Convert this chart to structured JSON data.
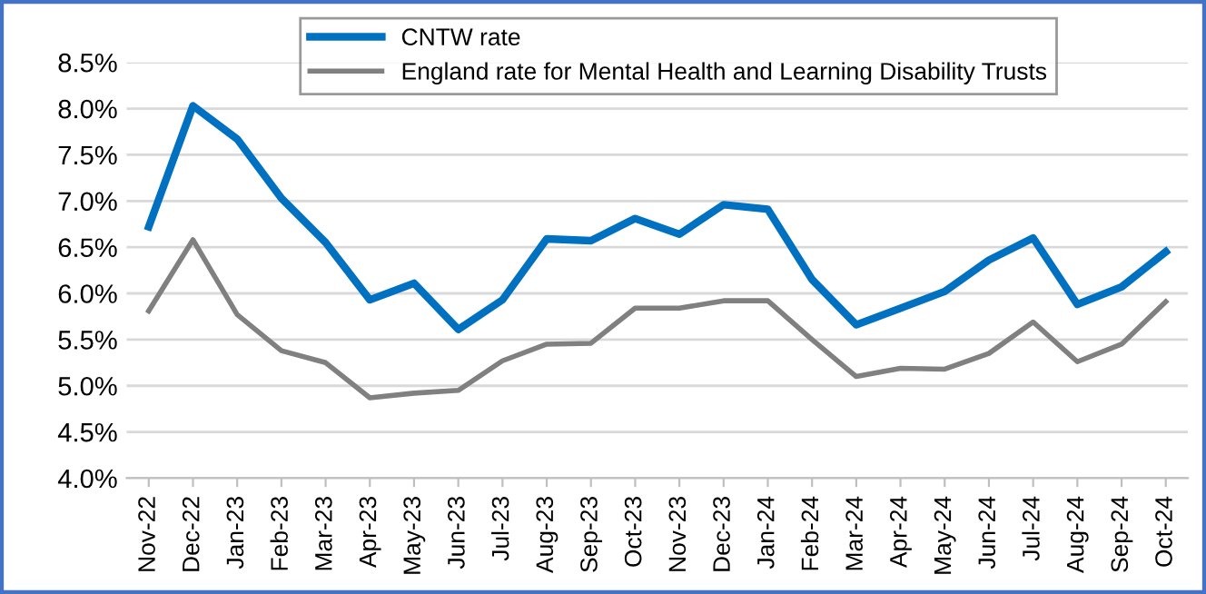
{
  "chart_data": {
    "type": "line",
    "categories": [
      "Nov-22",
      "Dec-22",
      "Jan-23",
      "Feb-23",
      "Mar-23",
      "Apr-23",
      "May-23",
      "Jun-23",
      "Jul-23",
      "Aug-23",
      "Sep-23",
      "Oct-23",
      "Nov-23",
      "Dec-23",
      "Jan-24",
      "Feb-24",
      "Mar-24",
      "Apr-24",
      "May-24",
      "Jun-24",
      "Jul-24",
      "Aug-24",
      "Sep-24",
      "Oct-24"
    ],
    "series": [
      {
        "name": "CNTW rate",
        "color": "#0070c0",
        "values": [
          6.72,
          8.03,
          7.67,
          7.03,
          6.55,
          5.93,
          6.11,
          5.61,
          5.93,
          6.59,
          6.57,
          6.81,
          6.64,
          6.96,
          6.91,
          6.15,
          5.66,
          5.84,
          6.02,
          6.36,
          6.6,
          5.88,
          6.07,
          6.45
        ]
      },
      {
        "name": "England rate for Mental Health and Learning Disability Trusts",
        "color": "#808080",
        "values": [
          5.81,
          6.58,
          5.77,
          5.38,
          5.25,
          4.87,
          4.92,
          4.95,
          5.27,
          5.45,
          5.46,
          5.84,
          5.84,
          5.92,
          5.92,
          5.5,
          5.1,
          5.19,
          5.18,
          5.35,
          5.69,
          5.26,
          5.45,
          5.91
        ]
      }
    ],
    "ylim": [
      4.0,
      8.5
    ],
    "yticks": [
      {
        "value": 4.0,
        "label": "4.0%"
      },
      {
        "value": 4.5,
        "label": "4.5%"
      },
      {
        "value": 5.0,
        "label": "5.0%"
      },
      {
        "value": 5.5,
        "label": "5.5%"
      },
      {
        "value": 6.0,
        "label": "6.0%"
      },
      {
        "value": 6.5,
        "label": "6.5%"
      },
      {
        "value": 7.0,
        "label": "7.0%"
      },
      {
        "value": 7.5,
        "label": "7.5%"
      },
      {
        "value": 8.0,
        "label": "8.0%"
      },
      {
        "value": 8.5,
        "label": "8.5%"
      }
    ],
    "grid": "y",
    "legend": "top",
    "marker": "none",
    "line_style": "solid"
  }
}
